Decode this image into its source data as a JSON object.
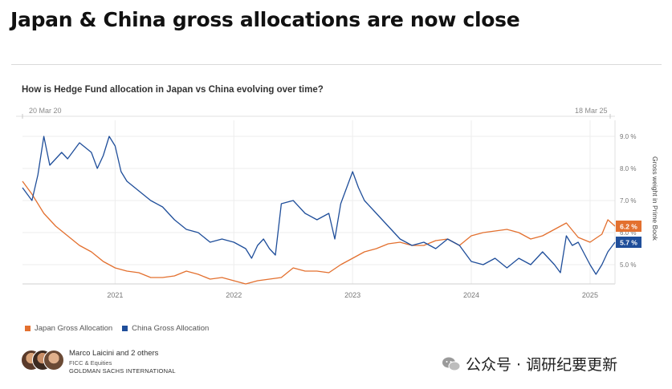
{
  "headline": "Japan & China gross allocations are now close",
  "chart_data": {
    "type": "line",
    "title": "How is Hedge Fund allocation in Japan vs China evolving over time?",
    "date_start": "20 Mar 20",
    "date_end": "18 Mar 25",
    "ylabel": "Gross weight in Prime Book",
    "xlim": [
      2020.22,
      2025.21
    ],
    "ylim": [
      4.4,
      9.5
    ],
    "x_ticks": [
      "2021",
      "2022",
      "2023",
      "2024",
      "2025"
    ],
    "x_tick_values": [
      2021,
      2022,
      2023,
      2024,
      2025
    ],
    "y_ticks": [
      "5.0 %",
      "6.0 %",
      "7.0 %",
      "8.0 %",
      "9.0 %"
    ],
    "y_tick_values": [
      5,
      6,
      7,
      8,
      9
    ],
    "grid": true,
    "legend_position": "bottom-left",
    "series": [
      {
        "name": "Japan Gross Allocation",
        "color": "#e3702f",
        "end_label": "6.2 %",
        "end_value": 6.2,
        "x": [
          2020.22,
          2020.3,
          2020.4,
          2020.5,
          2020.6,
          2020.7,
          2020.8,
          2020.9,
          2021.0,
          2021.1,
          2021.2,
          2021.3,
          2021.4,
          2021.5,
          2021.6,
          2021.7,
          2021.8,
          2021.9,
          2022.0,
          2022.1,
          2022.2,
          2022.3,
          2022.4,
          2022.5,
          2022.6,
          2022.7,
          2022.8,
          2022.9,
          2023.0,
          2023.1,
          2023.2,
          2023.3,
          2023.4,
          2023.5,
          2023.6,
          2023.7,
          2023.8,
          2023.9,
          2024.0,
          2024.1,
          2024.2,
          2024.3,
          2024.4,
          2024.5,
          2024.6,
          2024.7,
          2024.8,
          2024.9,
          2025.0,
          2025.1,
          2025.15,
          2025.21
        ],
        "y": [
          7.6,
          7.2,
          6.6,
          6.2,
          5.9,
          5.6,
          5.4,
          5.1,
          4.9,
          4.8,
          4.75,
          4.6,
          4.6,
          4.65,
          4.8,
          4.7,
          4.55,
          4.6,
          4.5,
          4.4,
          4.5,
          4.55,
          4.6,
          4.9,
          4.8,
          4.8,
          4.75,
          5.0,
          5.2,
          5.4,
          5.5,
          5.65,
          5.7,
          5.6,
          5.6,
          5.75,
          5.8,
          5.6,
          5.9,
          6.0,
          6.05,
          6.1,
          6.0,
          5.8,
          5.9,
          6.1,
          6.3,
          5.85,
          5.7,
          5.95,
          6.4,
          6.2
        ]
      },
      {
        "name": "China Gross Allocation",
        "color": "#1f4e9a",
        "end_label": "5.7 %",
        "end_value": 5.7,
        "x": [
          2020.22,
          2020.3,
          2020.35,
          2020.4,
          2020.45,
          2020.5,
          2020.55,
          2020.6,
          2020.7,
          2020.8,
          2020.85,
          2020.9,
          2020.95,
          2021.0,
          2021.05,
          2021.1,
          2021.2,
          2021.3,
          2021.4,
          2021.5,
          2021.6,
          2021.7,
          2021.8,
          2021.9,
          2022.0,
          2022.1,
          2022.15,
          2022.2,
          2022.25,
          2022.3,
          2022.35,
          2022.4,
          2022.5,
          2022.6,
          2022.7,
          2022.8,
          2022.85,
          2022.9,
          2022.95,
          2023.0,
          2023.05,
          2023.1,
          2023.2,
          2023.3,
          2023.4,
          2023.5,
          2023.6,
          2023.7,
          2023.8,
          2023.9,
          2024.0,
          2024.1,
          2024.2,
          2024.3,
          2024.4,
          2024.5,
          2024.6,
          2024.7,
          2024.75,
          2024.8,
          2024.85,
          2024.9,
          2025.0,
          2025.05,
          2025.1,
          2025.15,
          2025.21
        ],
        "y": [
          7.4,
          7.0,
          7.8,
          9.0,
          8.1,
          8.3,
          8.5,
          8.3,
          8.8,
          8.5,
          8.0,
          8.4,
          9.0,
          8.7,
          7.9,
          7.6,
          7.3,
          7.0,
          6.8,
          6.4,
          6.1,
          6.0,
          5.7,
          5.8,
          5.7,
          5.5,
          5.2,
          5.6,
          5.8,
          5.5,
          5.3,
          6.9,
          7.0,
          6.6,
          6.4,
          6.6,
          5.8,
          6.9,
          7.4,
          7.9,
          7.4,
          7.0,
          6.6,
          6.2,
          5.8,
          5.6,
          5.7,
          5.5,
          5.8,
          5.6,
          5.1,
          5.0,
          5.2,
          4.9,
          5.2,
          5.0,
          5.4,
          5.0,
          4.75,
          5.9,
          5.6,
          5.7,
          5.0,
          4.7,
          5.0,
          5.4,
          5.7
        ]
      }
    ]
  },
  "legend": {
    "japan_label": "Japan Gross Allocation",
    "china_label": "China Gross Allocation"
  },
  "author": {
    "name": "Marco Laicini and 2 others",
    "department": "FICC & Equities",
    "firm": "GOLDMAN SACHS INTERNATIONAL"
  },
  "watermark": {
    "text": "公众号 · 调研纪要更新"
  },
  "colors": {
    "japan": "#e3702f",
    "china": "#1f4e9a"
  }
}
